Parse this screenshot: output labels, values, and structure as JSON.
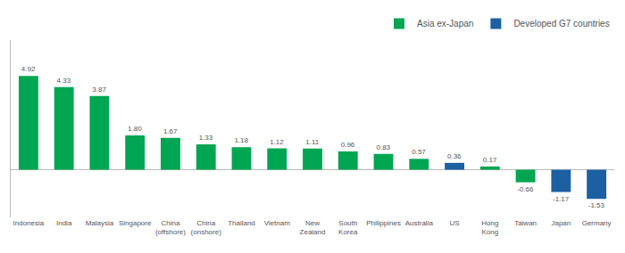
{
  "chart_data": {
    "type": "bar",
    "categories": [
      "Indonesia",
      "India",
      "Malaysia",
      "Singapore",
      "China\n(offshore)",
      "China\n(onshore)",
      "Thailand",
      "Vietnam",
      "New\nZealand",
      "South\nKorea",
      "Philippines",
      "Australia",
      "US",
      "Hong\nKong",
      "Taiwan",
      "Japan",
      "Germany"
    ],
    "series": [
      {
        "name": "Asia ex-Japan",
        "color": "#00a651",
        "values": [
          4.92,
          4.33,
          3.87,
          1.8,
          1.67,
          1.33,
          1.18,
          1.12,
          1.11,
          0.96,
          0.83,
          0.57,
          null,
          0.17,
          -0.66,
          null,
          null
        ],
        "value_labels": [
          "4.92",
          "4.33",
          "3.87",
          "1.80",
          "1.67",
          "1.33",
          "1.18",
          "1.12",
          "1.11",
          "0.96",
          "0.83",
          "0.57",
          null,
          "0.17",
          "-0.66",
          null,
          null
        ]
      },
      {
        "name": "Developed G7 countries",
        "color": "#1c5fa3",
        "values": [
          null,
          null,
          null,
          null,
          null,
          null,
          null,
          null,
          null,
          null,
          null,
          null,
          0.36,
          null,
          null,
          -1.17,
          -1.53
        ],
        "value_labels": [
          null,
          null,
          null,
          null,
          null,
          null,
          null,
          null,
          null,
          null,
          null,
          null,
          "0.36",
          null,
          null,
          "-1.17",
          "-1.53"
        ]
      }
    ],
    "ylim": [
      -2.5,
      6.8
    ],
    "yticks": [],
    "grid": false,
    "legend": "upper right",
    "data_labels": true,
    "tick_labels": "x"
  }
}
